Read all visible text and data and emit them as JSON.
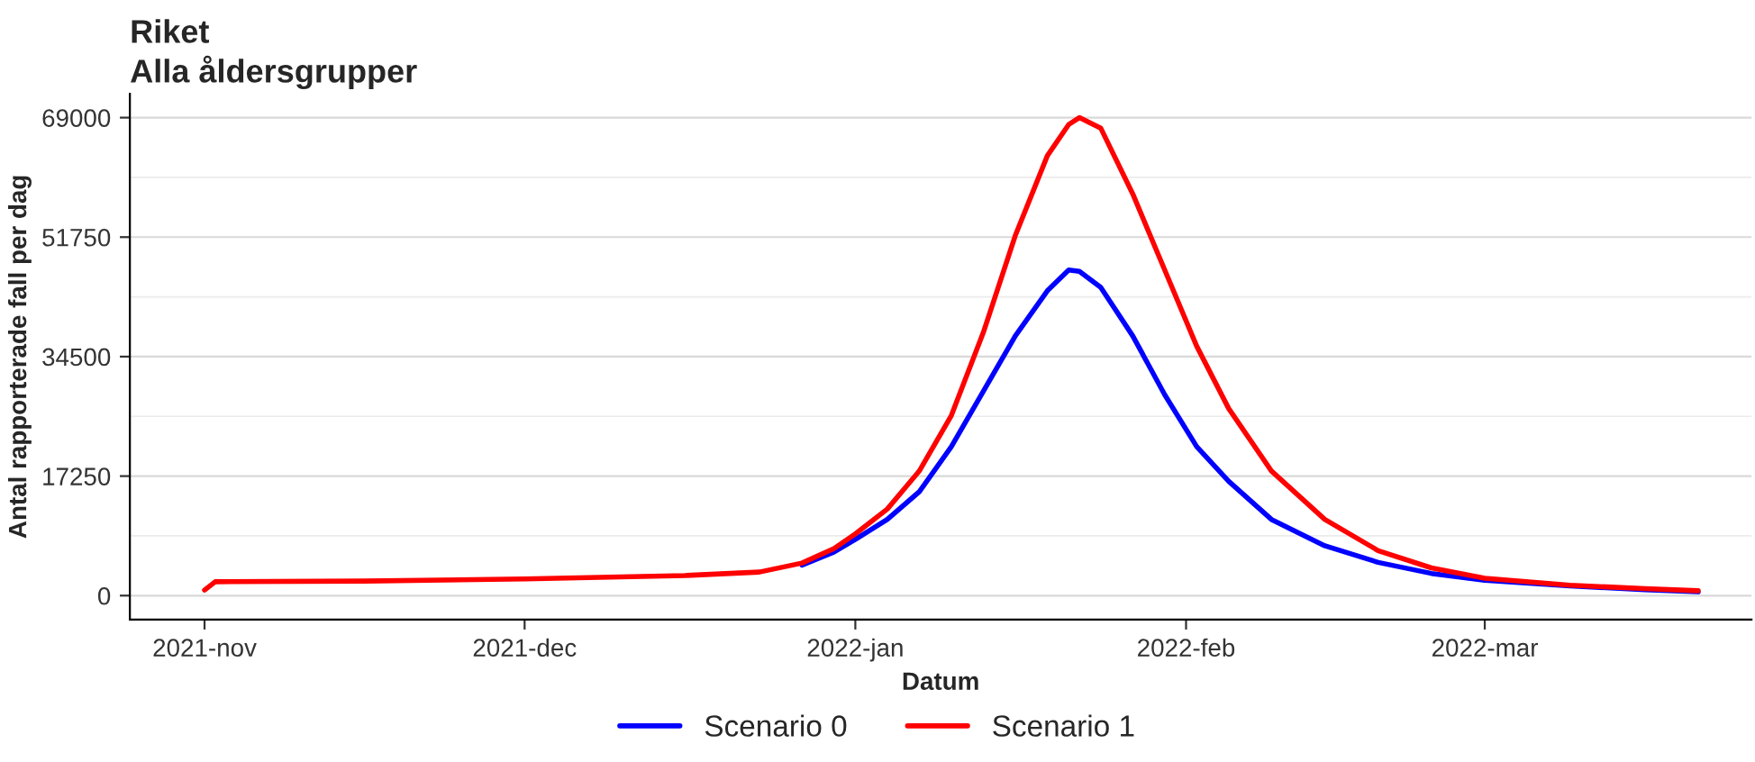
{
  "chart_data": {
    "type": "line",
    "title": "Riket",
    "subtitle": "Alla åldersgrupper",
    "xlabel": "Datum",
    "ylabel": "Antal rapporterade fall per dag",
    "x": [
      "2021-11-01",
      "2021-11-02",
      "2021-11-16",
      "2021-12-01",
      "2021-12-16",
      "2021-12-23",
      "2021-12-27",
      "2021-12-30",
      "2022-01-01",
      "2022-01-04",
      "2022-01-07",
      "2022-01-10",
      "2022-01-13",
      "2022-01-16",
      "2022-01-19",
      "2022-01-21",
      "2022-01-22",
      "2022-01-24",
      "2022-01-27",
      "2022-01-30",
      "2022-02-02",
      "2022-02-05",
      "2022-02-09",
      "2022-02-14",
      "2022-02-19",
      "2022-02-24",
      "2022-03-01",
      "2022-03-09",
      "2022-03-16",
      "2022-03-21"
    ],
    "series": [
      {
        "name": "Scenario 0",
        "color": "#0000ff",
        "values": [
          null,
          null,
          null,
          null,
          null,
          null,
          4400,
          6300,
          8100,
          11000,
          15000,
          21500,
          29500,
          37500,
          44000,
          47000,
          46800,
          44500,
          37500,
          29000,
          21500,
          16500,
          11000,
          7200,
          4800,
          3200,
          2200,
          1400,
          850,
          550
        ]
      },
      {
        "name": "Scenario 1",
        "color": "#ff0000",
        "values": [
          800,
          2000,
          2100,
          2400,
          2900,
          3400,
          4700,
          6800,
          8900,
          12500,
          18000,
          26000,
          38000,
          52000,
          63500,
          68000,
          69000,
          67500,
          58000,
          47000,
          36000,
          27000,
          18000,
          11000,
          6500,
          4000,
          2500,
          1500,
          1000,
          700
        ]
      }
    ],
    "xlim": [
      "2021-10-25",
      "2022-03-26"
    ],
    "xticks": [
      {
        "value": "2021-11-01",
        "label": "2021-nov"
      },
      {
        "value": "2021-12-01",
        "label": "2021-dec"
      },
      {
        "value": "2022-01-01",
        "label": "2022-jan"
      },
      {
        "value": "2022-02-01",
        "label": "2022-feb"
      },
      {
        "value": "2022-03-01",
        "label": "2022-mar"
      }
    ],
    "ylim": [
      -3450,
      72450
    ],
    "yticks": [
      0,
      {
        "value": 8625,
        "label": null
      },
      17250,
      {
        "value": 25875,
        "label": null
      },
      34500,
      {
        "value": 43125,
        "label": null
      },
      51750,
      {
        "value": 60375,
        "label": null
      },
      69000
    ],
    "grid": "y",
    "legend": "bottom",
    "marker": "none",
    "line_style": "solid"
  }
}
